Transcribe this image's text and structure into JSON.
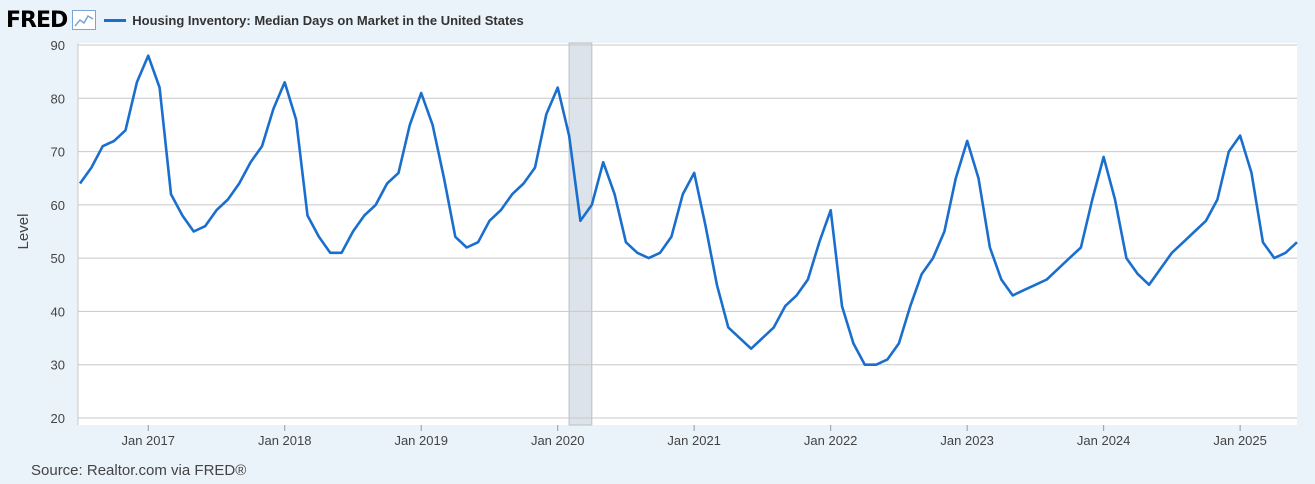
{
  "header": {
    "logo": "FRED",
    "logo_icon": "chart-line-icon"
  },
  "source": "Source: Realtor.com via FRED®",
  "chart_data": {
    "type": "line",
    "title": "",
    "xlabel": "",
    "ylabel": "Level",
    "ylim": [
      20,
      90
    ],
    "yticks": [
      20,
      30,
      40,
      50,
      60,
      70,
      80,
      90
    ],
    "xtick_labels": [
      "Jan 2017",
      "Jan 2018",
      "Jan 2019",
      "Jan 2020",
      "Jan 2021",
      "Jan 2022",
      "Jan 2023",
      "Jan 2024",
      "Jan 2025"
    ],
    "grid": true,
    "legend": "top-left",
    "colors": {
      "line": "#1a6fce",
      "recession": "#dde3ea"
    },
    "recession_shading": [
      {
        "start": "2020-02",
        "end": "2020-04"
      }
    ],
    "series": [
      {
        "name": "Housing Inventory: Median Days on Market in the United States",
        "start": "2016-07",
        "frequency": "monthly",
        "values": [
          64,
          67,
          71,
          72,
          74,
          83,
          88,
          82,
          62,
          58,
          55,
          56,
          59,
          61,
          64,
          68,
          71,
          78,
          83,
          76,
          58,
          54,
          51,
          51,
          55,
          58,
          60,
          64,
          66,
          75,
          81,
          75,
          65,
          54,
          52,
          53,
          57,
          59,
          62,
          64,
          67,
          77,
          82,
          73,
          57,
          60,
          68,
          62,
          53,
          51,
          50,
          51,
          54,
          62,
          66,
          56,
          45,
          37,
          35,
          33,
          35,
          37,
          41,
          43,
          46,
          53,
          59,
          41,
          34,
          30,
          30,
          31,
          34,
          41,
          47,
          50,
          55,
          65,
          72,
          65,
          52,
          46,
          43,
          44,
          45,
          46,
          48,
          50,
          52,
          61,
          69,
          61,
          50,
          47,
          45,
          48,
          51,
          53,
          55,
          57,
          61,
          70,
          73,
          66,
          53,
          50,
          51,
          53
        ]
      }
    ]
  }
}
